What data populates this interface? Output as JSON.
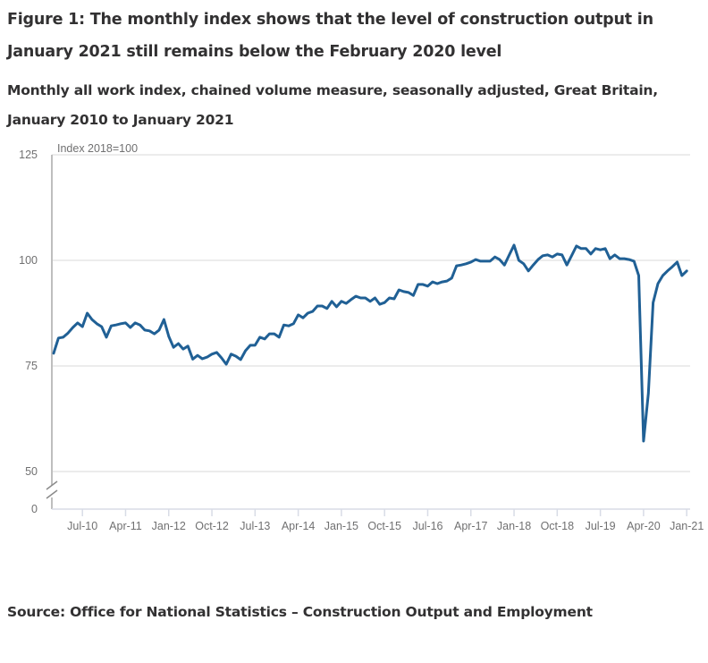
{
  "figure": {
    "title": "Figure 1: The monthly index shows that the level of construction output in January 2021 still remains below the February 2020 level",
    "subtitle": "Monthly all work index, chained volume measure, seasonally adjusted, Great Britain, January 2010 to January 2021",
    "source": "Source: Office for National Statistics – Construction Output and Employment"
  },
  "colors": {
    "line": "#206095",
    "axis": "#bebebe",
    "grid": "#e5e5e5",
    "text": "#323132",
    "tick_text": "#707071"
  },
  "chart_data": {
    "type": "line",
    "title": "Figure 1: The monthly index shows that the level of construction output in January 2021 still remains below the February 2020 level",
    "subtitle": "Monthly all work index, chained volume measure, seasonally adjusted, Great Britain, January 2010 to January 2021",
    "xlabel": "",
    "ylabel": "Index 2018=100",
    "ylim": [
      0,
      125
    ],
    "y_ticks": [
      0,
      50,
      75,
      100,
      125
    ],
    "y_axis_break": [
      0,
      50
    ],
    "grid": true,
    "legend": "none",
    "x_start": "Jan-10",
    "x_end": "Jan-21",
    "x_ticks": [
      "Jul-10",
      "Apr-11",
      "Jan-12",
      "Oct-12",
      "Jul-13",
      "Apr-14",
      "Jan-15",
      "Oct-15",
      "Jul-16",
      "Apr-17",
      "Jan-18",
      "Oct-18",
      "Jul-19",
      "Apr-20",
      "Jan-21"
    ],
    "x_tick_month_index": [
      6,
      15,
      24,
      33,
      42,
      51,
      60,
      69,
      78,
      87,
      96,
      105,
      114,
      123,
      132
    ],
    "series": [
      {
        "name": "All work index",
        "values": [
          78.0,
          81.6,
          81.8,
          82.8,
          84.1,
          85.2,
          84.3,
          87.5,
          86.0,
          85.0,
          84.3,
          81.8,
          84.5,
          84.7,
          85.0,
          85.2,
          84.1,
          85.2,
          84.7,
          83.5,
          83.3,
          82.6,
          83.5,
          86.0,
          82.0,
          79.4,
          80.3,
          79.0,
          79.7,
          76.6,
          77.5,
          76.7,
          77.1,
          77.8,
          78.2,
          76.9,
          75.4,
          77.8,
          77.3,
          76.5,
          78.6,
          79.9,
          79.9,
          81.8,
          81.4,
          82.6,
          82.6,
          81.8,
          84.7,
          84.5,
          85.0,
          87.1,
          86.4,
          87.5,
          87.9,
          89.2,
          89.2,
          88.6,
          90.3,
          89.0,
          90.3,
          89.8,
          90.7,
          91.5,
          91.1,
          91.1,
          90.3,
          91.1,
          89.6,
          90.0,
          91.1,
          90.9,
          93.0,
          92.6,
          92.4,
          91.7,
          94.3,
          94.3,
          93.9,
          94.9,
          94.5,
          94.9,
          95.1,
          95.8,
          98.7,
          98.9,
          99.2,
          99.6,
          100.2,
          99.8,
          99.8,
          99.8,
          100.8,
          100.2,
          98.9,
          101.3,
          103.6,
          100.0,
          99.2,
          97.5,
          98.9,
          100.2,
          101.1,
          101.3,
          100.8,
          101.5,
          101.3,
          98.9,
          101.1,
          103.4,
          102.8,
          102.8,
          101.5,
          102.8,
          102.5,
          102.8,
          100.4,
          101.3,
          100.4,
          100.4,
          100.2,
          99.8,
          96.4,
          57.2,
          68.5,
          90.0,
          94.5,
          96.4,
          97.5,
          98.5,
          99.6,
          96.4,
          97.5
        ]
      }
    ]
  }
}
